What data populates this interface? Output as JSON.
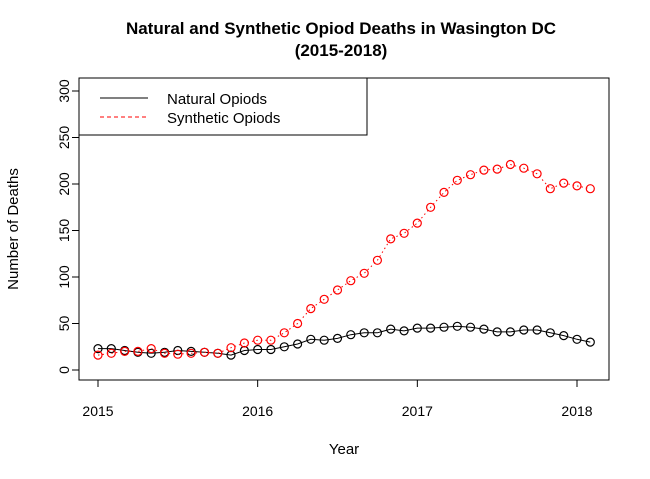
{
  "chart_data": {
    "type": "line",
    "title": "Natural and Synthetic Opiod Deaths in Wasington DC",
    "subtitle": "(2015-2018)",
    "xlabel": "Year",
    "ylabel": "Number of Deaths",
    "xlim": [
      2015,
      2018.1
    ],
    "ylim": [
      0,
      300
    ],
    "x_ticks": [
      2015,
      2016,
      2017,
      2018
    ],
    "x_tick_labels": [
      "2015",
      "2016",
      "2017",
      "2018"
    ],
    "y_ticks": [
      0,
      50,
      100,
      150,
      200,
      250,
      300
    ],
    "y_tick_labels": [
      "0",
      "50",
      "100",
      "150",
      "200",
      "250",
      "300"
    ],
    "grid": false,
    "legend_position": "top-left",
    "x": [
      2015.0,
      2015.083,
      2015.167,
      2015.25,
      2015.333,
      2015.417,
      2015.5,
      2015.583,
      2015.667,
      2015.75,
      2015.833,
      2015.917,
      2016.0,
      2016.083,
      2016.167,
      2016.25,
      2016.333,
      2016.417,
      2016.5,
      2016.583,
      2016.667,
      2016.75,
      2016.833,
      2016.917,
      2017.0,
      2017.083,
      2017.167,
      2017.25,
      2017.333,
      2017.417,
      2017.5,
      2017.583,
      2017.667,
      2017.75,
      2017.833,
      2017.917,
      2018.0,
      2018.083
    ],
    "series": [
      {
        "name": "Natural Opiods",
        "color": "#000000",
        "line_style": "solid",
        "values": [
          23,
          23,
          21,
          19,
          18,
          19,
          21,
          20,
          19,
          18,
          16,
          21,
          22,
          22,
          25,
          28,
          33,
          32,
          34,
          38,
          40,
          40,
          44,
          42,
          45,
          45,
          46,
          47,
          46,
          44,
          41,
          41,
          43,
          43,
          40,
          37,
          33,
          30
        ]
      },
      {
        "name": "Synthetic Opiods",
        "color": "#ff0000",
        "line_style": "dotted",
        "values": [
          16,
          18,
          20,
          20,
          23,
          18,
          17,
          18,
          19,
          18,
          24,
          29,
          32,
          32,
          40,
          50,
          66,
          76,
          86,
          96,
          104,
          118,
          141,
          147,
          158,
          175,
          191,
          204,
          210,
          215,
          216,
          221,
          217,
          211,
          195,
          201,
          198,
          195
        ]
      }
    ]
  }
}
